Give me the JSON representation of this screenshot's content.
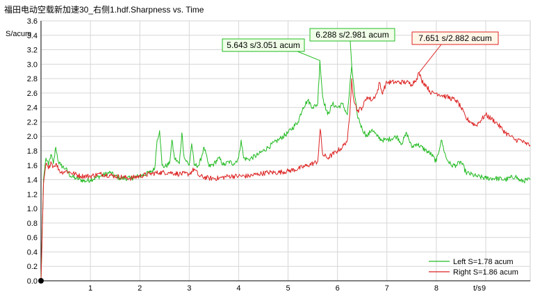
{
  "chart_data": {
    "type": "line",
    "title": "福田电动空载新加速30_右侧1.hdf.Sharpness vs. Time",
    "ylabel": "S/acum",
    "xlabel": "t/s",
    "xlim": [
      0,
      9.9
    ],
    "ylim": [
      0,
      3.6
    ],
    "xticks": [
      "1",
      "2",
      "3",
      "4",
      "5",
      "6",
      "7",
      "8",
      "9"
    ],
    "yticks": [
      "0.0",
      "0.2",
      "0.4",
      "0.6",
      "0.8",
      "1.0",
      "1.2",
      "1.4",
      "1.6",
      "1.8",
      "2.0",
      "2.2",
      "2.4",
      "2.6",
      "2.8",
      "3.0",
      "3.2",
      "3.4",
      "3.6"
    ],
    "grid": true,
    "legend_position": "bottom-right",
    "series": [
      {
        "name": "Left S=1.78 acum",
        "color": "#22bb22",
        "points": [
          [
            0,
            0
          ],
          [
            0.05,
            1.4
          ],
          [
            0.1,
            1.7
          ],
          [
            0.15,
            1.6
          ],
          [
            0.2,
            1.75
          ],
          [
            0.25,
            1.62
          ],
          [
            0.3,
            1.85
          ],
          [
            0.35,
            1.65
          ],
          [
            0.4,
            1.6
          ],
          [
            0.5,
            1.55
          ],
          [
            0.6,
            1.45
          ],
          [
            0.7,
            1.42
          ],
          [
            0.8,
            1.4
          ],
          [
            0.9,
            1.38
          ],
          [
            1.0,
            1.4
          ],
          [
            1.2,
            1.45
          ],
          [
            1.4,
            1.5
          ],
          [
            1.5,
            1.45
          ],
          [
            1.6,
            1.42
          ],
          [
            1.8,
            1.42
          ],
          [
            2.0,
            1.45
          ],
          [
            2.2,
            1.5
          ],
          [
            2.3,
            1.55
          ],
          [
            2.35,
            1.95
          ],
          [
            2.4,
            2.08
          ],
          [
            2.45,
            1.6
          ],
          [
            2.5,
            1.58
          ],
          [
            2.6,
            1.62
          ],
          [
            2.65,
            1.95
          ],
          [
            2.7,
            1.7
          ],
          [
            2.8,
            1.62
          ],
          [
            2.85,
            2.05
          ],
          [
            2.9,
            1.7
          ],
          [
            3.0,
            1.6
          ],
          [
            3.05,
            1.9
          ],
          [
            3.1,
            1.6
          ],
          [
            3.2,
            1.6
          ],
          [
            3.3,
            1.85
          ],
          [
            3.4,
            1.58
          ],
          [
            3.5,
            1.62
          ],
          [
            3.6,
            1.7
          ],
          [
            3.7,
            1.6
          ],
          [
            3.8,
            1.65
          ],
          [
            3.9,
            1.62
          ],
          [
            4.0,
            1.7
          ],
          [
            4.05,
            1.95
          ],
          [
            4.1,
            1.7
          ],
          [
            4.2,
            1.68
          ],
          [
            4.4,
            1.75
          ],
          [
            4.6,
            1.85
          ],
          [
            4.8,
            1.95
          ],
          [
            5.0,
            2.05
          ],
          [
            5.2,
            2.2
          ],
          [
            5.3,
            2.4
          ],
          [
            5.4,
            2.5
          ],
          [
            5.5,
            2.4
          ],
          [
            5.6,
            2.45
          ],
          [
            5.643,
            3.051
          ],
          [
            5.7,
            2.55
          ],
          [
            5.8,
            2.3
          ],
          [
            5.9,
            2.45
          ],
          [
            6.0,
            2.4
          ],
          [
            6.1,
            2.45
          ],
          [
            6.2,
            2.3
          ],
          [
            6.288,
            2.981
          ],
          [
            6.35,
            2.55
          ],
          [
            6.4,
            2.3
          ],
          [
            6.5,
            2.1
          ],
          [
            6.6,
            2.0
          ],
          [
            6.7,
            2.1
          ],
          [
            6.8,
            2.0
          ],
          [
            6.9,
            1.95
          ],
          [
            7.0,
            1.95
          ],
          [
            7.2,
            2.0
          ],
          [
            7.3,
            1.9
          ],
          [
            7.4,
            2.05
          ],
          [
            7.5,
            1.85
          ],
          [
            7.6,
            1.9
          ],
          [
            7.8,
            1.8
          ],
          [
            7.9,
            1.75
          ],
          [
            8.0,
            1.65
          ],
          [
            8.1,
            1.95
          ],
          [
            8.2,
            1.7
          ],
          [
            8.3,
            1.6
          ],
          [
            8.4,
            1.6
          ],
          [
            8.5,
            1.65
          ],
          [
            8.6,
            1.5
          ],
          [
            8.8,
            1.45
          ],
          [
            9.0,
            1.42
          ],
          [
            9.2,
            1.42
          ],
          [
            9.4,
            1.4
          ],
          [
            9.6,
            1.45
          ],
          [
            9.7,
            1.38
          ],
          [
            9.9,
            1.4
          ]
        ]
      },
      {
        "name": "Right S=1.86 acum",
        "color": "#dd2222",
        "points": [
          [
            0,
            0
          ],
          [
            0.05,
            1.35
          ],
          [
            0.1,
            1.62
          ],
          [
            0.15,
            1.55
          ],
          [
            0.2,
            1.65
          ],
          [
            0.25,
            1.58
          ],
          [
            0.3,
            1.62
          ],
          [
            0.4,
            1.5
          ],
          [
            0.5,
            1.52
          ],
          [
            0.6,
            1.5
          ],
          [
            0.8,
            1.45
          ],
          [
            1.0,
            1.45
          ],
          [
            1.2,
            1.48
          ],
          [
            1.5,
            1.45
          ],
          [
            1.8,
            1.42
          ],
          [
            2.0,
            1.45
          ],
          [
            2.2,
            1.48
          ],
          [
            2.4,
            1.5
          ],
          [
            2.6,
            1.5
          ],
          [
            2.8,
            1.48
          ],
          [
            3.0,
            1.48
          ],
          [
            3.1,
            1.55
          ],
          [
            3.2,
            1.45
          ],
          [
            3.4,
            1.42
          ],
          [
            3.6,
            1.42
          ],
          [
            3.8,
            1.45
          ],
          [
            4.0,
            1.45
          ],
          [
            4.2,
            1.45
          ],
          [
            4.4,
            1.48
          ],
          [
            4.6,
            1.5
          ],
          [
            4.8,
            1.5
          ],
          [
            5.0,
            1.52
          ],
          [
            5.2,
            1.55
          ],
          [
            5.4,
            1.6
          ],
          [
            5.6,
            1.65
          ],
          [
            5.65,
            2.1
          ],
          [
            5.7,
            1.75
          ],
          [
            5.8,
            1.7
          ],
          [
            6.0,
            1.8
          ],
          [
            6.1,
            1.85
          ],
          [
            6.2,
            1.95
          ],
          [
            6.25,
            2.3
          ],
          [
            6.288,
            2.8
          ],
          [
            6.32,
            2.55
          ],
          [
            6.4,
            2.35
          ],
          [
            6.5,
            2.4
          ],
          [
            6.6,
            2.55
          ],
          [
            6.7,
            2.5
          ],
          [
            6.8,
            2.6
          ],
          [
            6.85,
            2.75
          ],
          [
            6.9,
            2.6
          ],
          [
            7.0,
            2.75
          ],
          [
            7.2,
            2.75
          ],
          [
            7.4,
            2.75
          ],
          [
            7.5,
            2.72
          ],
          [
            7.6,
            2.8
          ],
          [
            7.651,
            2.882
          ],
          [
            7.7,
            2.78
          ],
          [
            7.8,
            2.7
          ],
          [
            7.9,
            2.6
          ],
          [
            8.0,
            2.6
          ],
          [
            8.2,
            2.55
          ],
          [
            8.4,
            2.5
          ],
          [
            8.5,
            2.4
          ],
          [
            8.6,
            2.25
          ],
          [
            8.7,
            2.2
          ],
          [
            8.8,
            2.15
          ],
          [
            9.0,
            2.3
          ],
          [
            9.2,
            2.2
          ],
          [
            9.4,
            2.05
          ],
          [
            9.5,
            2.0
          ],
          [
            9.6,
            1.95
          ],
          [
            9.7,
            1.95
          ],
          [
            9.8,
            1.9
          ],
          [
            9.9,
            1.88
          ]
        ]
      }
    ],
    "annotations": [
      {
        "text": "5.643 s/3.051 acum",
        "x": 5.643,
        "y": 3.051,
        "color": "#22bb22"
      },
      {
        "text": "6.288 s/2.981 acum",
        "x": 6.288,
        "y": 2.981,
        "color": "#22bb22"
      },
      {
        "text": "7.651 s/2.882 acum",
        "x": 7.651,
        "y": 2.882,
        "color": "#dd2222"
      }
    ]
  }
}
